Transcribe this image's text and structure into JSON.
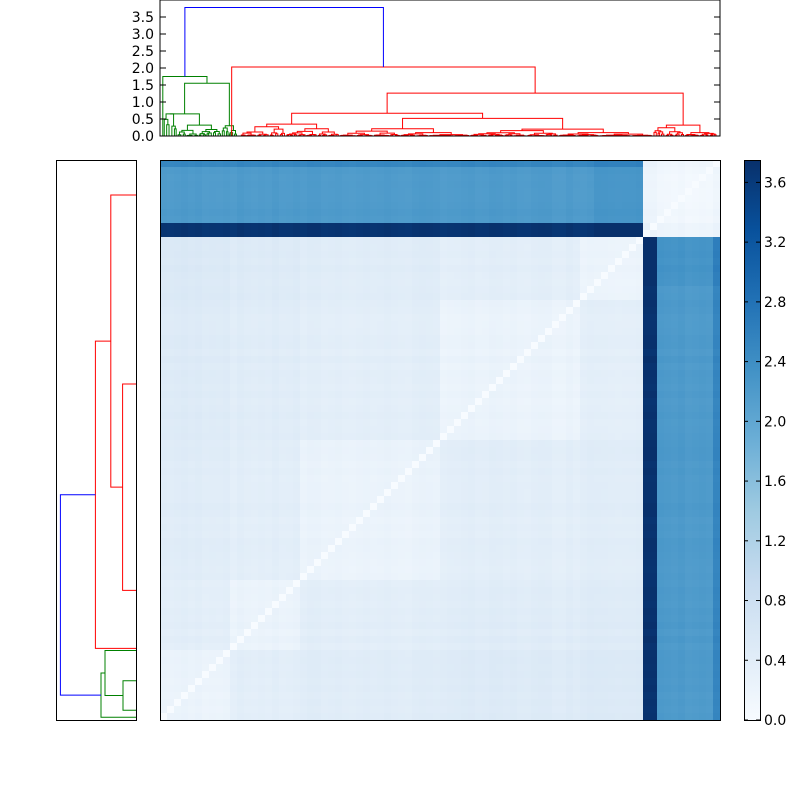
{
  "chart_data": [
    {
      "type": "dendrogram",
      "orientation": "top",
      "yticks": [
        "0.0",
        "0.5",
        "1.0",
        "1.5",
        "2.0",
        "2.5",
        "3.0",
        "3.5"
      ],
      "ylim": [
        0,
        4.0
      ],
      "cluster_colors": {
        "root": "#0000ff",
        "cluster_a": "#008000",
        "cluster_b": "#ff0000"
      },
      "merges": [
        {
          "cluster": "root",
          "height": 3.78
        },
        {
          "cluster": "cluster_b",
          "height": 2.03
        },
        {
          "cluster": "cluster_b",
          "height": 1.26
        },
        {
          "cluster": "cluster_b",
          "height": 0.67
        },
        {
          "cluster": "cluster_a",
          "height": 1.75
        },
        {
          "cluster": "cluster_a",
          "height": 1.55
        },
        {
          "cluster": "cluster_a",
          "height": 0.65
        }
      ]
    },
    {
      "type": "dendrogram",
      "orientation": "left",
      "xlim": [
        0,
        4.0
      ],
      "cluster_colors": {
        "root": "#0000ff",
        "cluster_a": "#008000",
        "cluster_b": "#ff0000"
      }
    },
    {
      "type": "heatmap",
      "colormap": "Blues",
      "order": "dendrogram leaf order",
      "cluster_fractions": {
        "red": 0.862,
        "green": 0.138
      },
      "colorbar": {
        "ticks": [
          "0.0",
          "0.4",
          "0.8",
          "1.2",
          "1.6",
          "2.0",
          "2.4",
          "2.8",
          "3.2",
          "3.6"
        ],
        "range": [
          0,
          3.75
        ]
      }
    }
  ]
}
